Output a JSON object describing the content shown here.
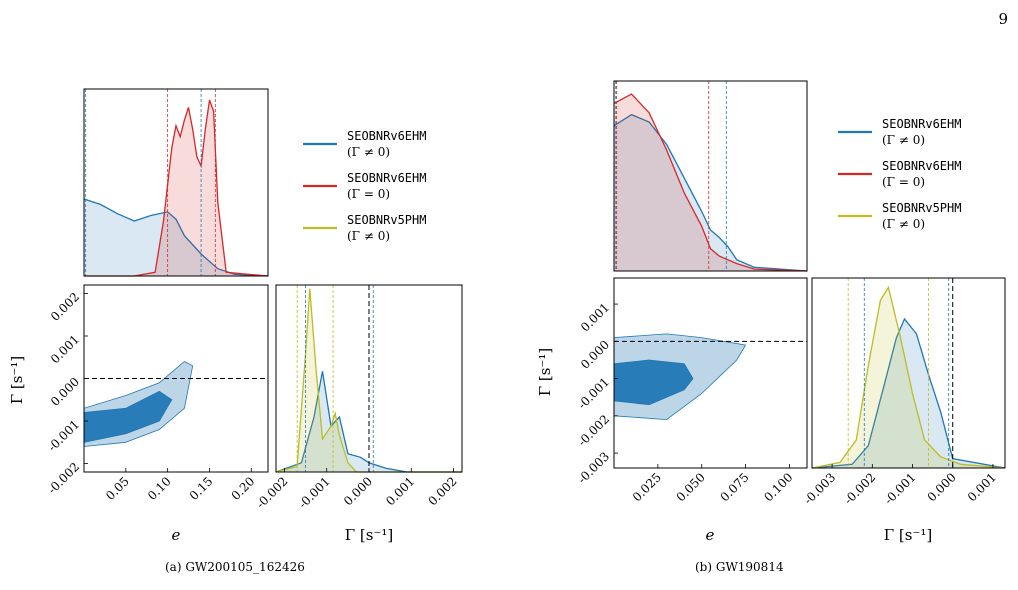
{
  "page_number": "9",
  "colors": {
    "blue": "#2077b4",
    "red": "#d62728",
    "olive": "#bcbd22",
    "black": "#000000"
  },
  "subfigures": [
    {
      "caption": "(a) GW200105_162426",
      "legend": [
        {
          "label": "SEOBNRv6EHM",
          "sublabel": "(Γ ≠ 0)",
          "color": "blue"
        },
        {
          "label": "SEOBNRv6EHM",
          "sublabel": "(Γ = 0)",
          "color": "red"
        },
        {
          "label": "SEOBNRv5PHM",
          "sublabel": "(Γ ≠ 0)",
          "color": "olive"
        }
      ],
      "x_label": "e",
      "y_label": "Γ [s⁻¹]",
      "gamma_label": "Γ [s⁻¹]",
      "e_ticks": [
        "0.05",
        "0.10",
        "0.15",
        "0.20"
      ],
      "gamma_ticks": [
        "-0.002",
        "-0.001",
        "0.000",
        "0.001",
        "0.002"
      ]
    },
    {
      "caption": "(b) GW190814",
      "legend": [
        {
          "label": "SEOBNRv6EHM",
          "sublabel": "(Γ ≠ 0)",
          "color": "blue"
        },
        {
          "label": "SEOBNRv6EHM",
          "sublabel": "(Γ = 0)",
          "color": "red"
        },
        {
          "label": "SEOBNRv5PHM",
          "sublabel": "(Γ ≠ 0)",
          "color": "olive"
        }
      ],
      "x_label": "e",
      "y_label": "Γ [s⁻¹]",
      "gamma_label": "Γ [s⁻¹]",
      "e_ticks": [
        "0.025",
        "0.050",
        "0.075",
        "0.100"
      ],
      "gamma_ticks": [
        "-0.003",
        "-0.002",
        "-0.001",
        "0.000",
        "0.001"
      ],
      "gamma_ticks_y": [
        "-0.003",
        "-0.002",
        "-0.001",
        "0.000",
        "0.001"
      ]
    }
  ],
  "chart_data": [
    {
      "type": "area",
      "panel": "a-marginal-e",
      "x_range": [
        0.0,
        0.22
      ],
      "series": [
        {
          "name": "SEOBNRv6EHM (Γ ≠ 0)",
          "color": "blue",
          "x": [
            0.0,
            0.02,
            0.04,
            0.06,
            0.08,
            0.1,
            0.11,
            0.12,
            0.14,
            0.16,
            0.18,
            0.22
          ],
          "y": [
            0.42,
            0.39,
            0.34,
            0.3,
            0.33,
            0.35,
            0.31,
            0.22,
            0.12,
            0.04,
            0.01,
            0.0
          ]
        },
        {
          "name": "SEOBNRv6EHM (Γ = 0)",
          "color": "red",
          "x": [
            0.0,
            0.06,
            0.085,
            0.095,
            0.105,
            0.11,
            0.115,
            0.12,
            0.125,
            0.13,
            0.135,
            0.14,
            0.145,
            0.15,
            0.155,
            0.16,
            0.17,
            0.22
          ],
          "y": [
            0.0,
            0.0,
            0.02,
            0.3,
            0.7,
            0.82,
            0.76,
            0.85,
            0.92,
            0.8,
            0.65,
            0.6,
            0.8,
            0.96,
            0.9,
            0.4,
            0.02,
            0.0
          ]
        }
      ],
      "quantile_lines": {
        "blue": [
          0.002,
          0.14
        ],
        "red": [
          0.1,
          0.157
        ]
      }
    },
    {
      "type": "area",
      "panel": "a-marginal-gamma",
      "x_range": [
        -0.0022,
        0.0022
      ],
      "series": [
        {
          "name": "SEOBNRv6EHM (Γ ≠ 0)",
          "color": "blue",
          "x": [
            -0.0022,
            -0.0016,
            -0.0013,
            -0.0011,
            -0.0009,
            -0.0007,
            -0.0005,
            -0.0002,
            0.0,
            0.0004,
            0.0009,
            0.0022
          ],
          "y": [
            0.0,
            0.05,
            0.3,
            0.55,
            0.25,
            0.3,
            0.1,
            0.08,
            0.05,
            0.02,
            0.0,
            0.0
          ]
        },
        {
          "name": "SEOBNRv5PHM (Γ ≠ 0)",
          "color": "olive",
          "x": [
            -0.0022,
            -0.0017,
            -0.0015,
            -0.0014,
            -0.00125,
            -0.0011,
            -0.0009,
            -0.0008,
            -0.0007,
            -0.0005,
            -0.0003,
            0.0022
          ],
          "y": [
            0.0,
            0.03,
            0.65,
            1.0,
            0.55,
            0.18,
            0.25,
            0.32,
            0.2,
            0.05,
            0.0,
            0.0
          ]
        }
      ],
      "reference_line": 0.0,
      "quantile_lines": {
        "blue": [
          -0.0015,
          0.0001
        ],
        "olive": [
          -0.0017,
          -0.00085
        ]
      }
    },
    {
      "type": "area",
      "panel": "a-joint",
      "x_range": [
        0.0,
        0.22
      ],
      "y_range": [
        -0.0022,
        0.0022
      ],
      "reference_line": 0.0,
      "series": [
        {
          "name": "90% contour",
          "color": "blue",
          "x": [
            0.0,
            0.05,
            0.09,
            0.12,
            0.13,
            0.12,
            0.09,
            0.05,
            0.0
          ],
          "y": [
            -0.0016,
            -0.0015,
            -0.0012,
            -0.0007,
            0.0003,
            0.0004,
            -0.0001,
            -0.0004,
            -0.0007
          ]
        },
        {
          "name": "50% contour",
          "color": "blue",
          "x": [
            0.0,
            0.05,
            0.09,
            0.105,
            0.09,
            0.05,
            0.0
          ],
          "y": [
            -0.0015,
            -0.0013,
            -0.001,
            -0.0005,
            -0.0003,
            -0.0007,
            -0.0008
          ]
        }
      ]
    },
    {
      "type": "area",
      "panel": "b-marginal-e",
      "x_range": [
        0.0,
        0.11
      ],
      "series": [
        {
          "name": "SEOBNRv6EHM (Γ ≠ 0)",
          "color": "blue",
          "x": [
            0.0,
            0.01,
            0.02,
            0.03,
            0.04,
            0.05,
            0.055,
            0.06,
            0.065,
            0.07,
            0.08,
            0.11
          ],
          "y": [
            0.78,
            0.84,
            0.8,
            0.68,
            0.5,
            0.32,
            0.22,
            0.18,
            0.13,
            0.06,
            0.02,
            0.0
          ]
        },
        {
          "name": "SEOBNRv6EHM (Γ = 0)",
          "color": "red",
          "x": [
            0.0,
            0.01,
            0.02,
            0.03,
            0.04,
            0.05,
            0.055,
            0.06,
            0.07,
            0.08,
            0.11
          ],
          "y": [
            0.9,
            0.95,
            0.85,
            0.65,
            0.42,
            0.24,
            0.12,
            0.08,
            0.04,
            0.01,
            0.0
          ]
        }
      ],
      "quantile_lines": {
        "blue": [
          0.001,
          0.064
        ],
        "red": [
          0.0015,
          0.054
        ]
      }
    },
    {
      "type": "area",
      "panel": "b-marginal-gamma",
      "x_range": [
        -0.0035,
        0.0013
      ],
      "series": [
        {
          "name": "SEOBNRv6EHM (Γ ≠ 0)",
          "color": "blue",
          "x": [
            -0.0035,
            -0.0025,
            -0.0021,
            -0.0017,
            -0.0014,
            -0.0012,
            -0.0009,
            -0.0006,
            -0.0003,
            0.0,
            0.0013
          ],
          "y": [
            0.0,
            0.02,
            0.12,
            0.45,
            0.7,
            0.8,
            0.72,
            0.5,
            0.3,
            0.05,
            0.0
          ]
        },
        {
          "name": "SEOBNRv5PHM (Γ ≠ 0)",
          "color": "olive",
          "x": [
            -0.0035,
            -0.0028,
            -0.0024,
            -0.0021,
            -0.0018,
            -0.0016,
            -0.0013,
            -0.001,
            -0.0007,
            -0.0003,
            0.0002,
            0.0013
          ],
          "y": [
            0.0,
            0.03,
            0.15,
            0.55,
            0.9,
            0.97,
            0.7,
            0.4,
            0.15,
            0.06,
            0.02,
            0.0
          ]
        }
      ],
      "reference_line": 0.0,
      "quantile_lines": {
        "blue": [
          -0.0022,
          -0.0001
        ],
        "olive": [
          -0.0026,
          -0.0006
        ]
      }
    },
    {
      "type": "area",
      "panel": "b-joint",
      "x_range": [
        0.0,
        0.11
      ],
      "y_range": [
        -0.0034,
        0.0017
      ],
      "reference_line": 0.0,
      "series": [
        {
          "name": "90% contour",
          "color": "blue",
          "x": [
            0.0,
            0.03,
            0.05,
            0.07,
            0.075,
            0.05,
            0.03,
            0.0
          ],
          "y": [
            -0.002,
            -0.0021,
            -0.0014,
            -0.0005,
            -0.0001,
            0.0001,
            0.0002,
            0.0001
          ]
        },
        {
          "name": "50% contour",
          "color": "blue",
          "x": [
            0.0,
            0.02,
            0.04,
            0.045,
            0.04,
            0.02,
            0.0
          ],
          "y": [
            -0.0016,
            -0.0017,
            -0.0013,
            -0.001,
            -0.0006,
            -0.0005,
            -0.0006
          ]
        }
      ]
    }
  ]
}
